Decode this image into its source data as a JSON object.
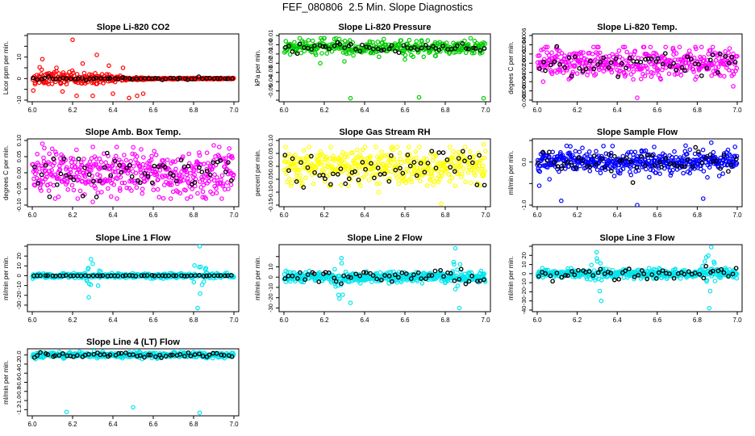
{
  "figure": {
    "title": "FEF_080806  2.5 Min. Slope Diagnostics",
    "overlay_color": "#000000"
  },
  "chart_data": [
    {
      "type": "scatter",
      "title": "Slope Li-820 CO2",
      "ylabel": "Licor ppm per min.",
      "xlim": [
        6.0,
        7.0
      ],
      "ylim": [
        -10,
        20
      ],
      "yticks": [
        -10,
        -5,
        0,
        5,
        10,
        15,
        20
      ],
      "ytick_labels": [
        "-10",
        "",
        "0",
        "",
        "10",
        "",
        ""
      ],
      "xticks": [
        6.0,
        6.2,
        6.4,
        6.6,
        6.8,
        7.0
      ],
      "xtick_labels": [
        "6.0",
        "6.2",
        "6.4",
        "6.6",
        "6.8",
        "7.0"
      ],
      "color": "#ff0000",
      "y_center": 0,
      "y_spread": 1.5,
      "y_band": 4,
      "n_points": 360,
      "spread_decay": true,
      "x_outliers": [
        6.05,
        6.12,
        6.15,
        6.2,
        6.22,
        6.25,
        6.3,
        6.32,
        6.38,
        6.4,
        6.45,
        6.48,
        6.52,
        6.55
      ],
      "y_outliers": [
        9,
        5,
        -6,
        18,
        -8,
        7,
        -8,
        11,
        6,
        -7,
        5,
        -9,
        -8,
        -7
      ],
      "overlay_spread": 0.3
    },
    {
      "type": "scatter",
      "title": "Slope Li-820 Pressure",
      "ylabel": "kPa per min.",
      "xlim": [
        6.0,
        7.0
      ],
      "ylim": [
        -0.06,
        0.01
      ],
      "yticks": [
        -0.06,
        -0.05,
        -0.04,
        -0.03,
        -0.02,
        -0.01,
        0.0,
        0.01
      ],
      "ytick_labels": [
        "",
        "-0.05",
        "-0.04",
        "-0.03",
        "-0.02",
        "-0.01",
        "0.00",
        "0.01"
      ],
      "xticks": [
        6.0,
        6.2,
        6.4,
        6.6,
        6.8,
        7.0
      ],
      "xtick_labels": [
        "6.0",
        "6.2",
        "6.4",
        "6.6",
        "6.8",
        "7.0"
      ],
      "color": "#00cc00",
      "y_center": -0.003,
      "y_spread": 0.004,
      "y_band": 0.01,
      "n_points": 340,
      "spread_decay": false,
      "x_outliers": [
        6.33,
        6.67,
        6.99,
        6.18,
        6.3,
        6.6,
        6.75
      ],
      "y_outliers": [
        -0.058,
        -0.057,
        -0.058,
        -0.02,
        -0.018,
        -0.016,
        -0.012
      ],
      "overlay_spread": 0.0025
    },
    {
      "type": "scatter",
      "title": "Slope Li-820 Temp.",
      "ylabel": "degees C per min.",
      "xlim": [
        6.0,
        7.0
      ],
      "ylim": [
        -0.008,
        0.006
      ],
      "yticks": [
        -0.008,
        -0.006,
        -0.004,
        -0.002,
        0.0,
        0.002,
        0.004,
        0.006
      ],
      "ytick_labels": [
        "-0.008",
        "-0.006",
        "-0.004",
        "-0.002",
        "0.000",
        "0.002",
        "0.004",
        "0.006"
      ],
      "xticks": [
        6.0,
        6.2,
        6.4,
        6.6,
        6.8,
        7.0
      ],
      "xtick_labels": [
        "6.0",
        "6.2",
        "6.4",
        "6.6",
        "6.8",
        "7.0"
      ],
      "color": "#ff00ff",
      "y_center": 0,
      "y_spread": 0.0018,
      "y_band": 0.0035,
      "n_points": 420,
      "spread_decay": false,
      "x_outliers": [
        6.5,
        6.98,
        6.03
      ],
      "y_outliers": [
        -0.0075,
        -0.005,
        -0.004
      ],
      "overlay_spread": 0.0015
    },
    {
      "type": "scatter",
      "title": "Slope Amb. Box Temp.",
      "ylabel": "degrees C per min.",
      "xlim": [
        6.0,
        7.0
      ],
      "ylim": [
        -0.1,
        0.1
      ],
      "yticks": [
        -0.1,
        -0.05,
        0.0,
        0.05,
        0.1
      ],
      "ytick_labels": [
        "-0.10",
        "-0.05",
        "0.00",
        "0.05",
        "0.10"
      ],
      "xticks": [
        6.0,
        6.2,
        6.4,
        6.6,
        6.8,
        7.0
      ],
      "xtick_labels": [
        "6.0",
        "6.2",
        "6.4",
        "6.6",
        "6.8",
        "7.0"
      ],
      "color": "#ff00ff",
      "y_center": 0,
      "y_spread": 0.035,
      "y_band": 0.08,
      "n_points": 460,
      "spread_decay": false,
      "x_outliers": [
        6.05,
        6.3,
        6.42,
        6.9
      ],
      "y_outliers": [
        0.09,
        -0.09,
        -0.08,
        0.085
      ],
      "overlay_spread": 0.03
    },
    {
      "type": "scatter",
      "title": "Slope Gas Stream RH",
      "ylabel": "percent per min.",
      "xlim": [
        6.0,
        7.0
      ],
      "ylim": [
        -0.15,
        0.1
      ],
      "yticks": [
        -0.15,
        -0.1,
        -0.05,
        0.0,
        0.05,
        0.1
      ],
      "ytick_labels": [
        "-0.15",
        "-0.10",
        "-0.05",
        "0.00",
        "0.05",
        "0.10"
      ],
      "xticks": [
        6.0,
        6.2,
        6.4,
        6.6,
        6.8,
        7.0
      ],
      "xtick_labels": [
        "6.0",
        "6.2",
        "6.4",
        "6.6",
        "6.8",
        "7.0"
      ],
      "color": "#ffff00",
      "y_center": 0,
      "y_spread": 0.035,
      "y_band": 0.075,
      "n_points": 440,
      "spread_decay": false,
      "x_outliers": [
        6.78,
        6.99,
        6.47
      ],
      "y_outliers": [
        -0.145,
        0.085,
        -0.1
      ],
      "overlay_spread": 0.04
    },
    {
      "type": "scatter",
      "title": "Slope Sample Flow",
      "ylabel": "ml/min per min.",
      "xlim": [
        6.0,
        7.0
      ],
      "ylim": [
        -1.0,
        0.5
      ],
      "yticks": [
        -1.0,
        -0.5,
        0.0,
        0.5
      ],
      "ytick_labels": [
        "-1.0",
        "",
        "0.0",
        ""
      ],
      "xticks": [
        6.0,
        6.2,
        6.4,
        6.6,
        6.8,
        7.0
      ],
      "xtick_labels": [
        "6.0",
        "6.2",
        "6.4",
        "6.6",
        "6.8",
        "7.0"
      ],
      "color": "#0000ff",
      "y_center": 0,
      "y_spread": 0.13,
      "y_band": 0.4,
      "n_points": 460,
      "spread_decay": false,
      "x_outliers": [
        6.12,
        6.5,
        6.83,
        6.87,
        6.01
      ],
      "y_outliers": [
        -0.9,
        -1.0,
        -0.85,
        0.45,
        -0.55
      ],
      "overlay_spread": 0.15
    },
    {
      "type": "scatter",
      "title": "Slope Line 1 Flow",
      "ylabel": "ml/min per min.",
      "xlim": [
        6.0,
        7.0
      ],
      "ylim": [
        -35,
        30
      ],
      "yticks": [
        -30,
        -20,
        -10,
        0,
        10,
        20,
        30
      ],
      "ytick_labels": [
        "-30",
        "-20",
        "-10",
        "0",
        "10",
        "20",
        ""
      ],
      "xticks": [
        6.0,
        6.2,
        6.4,
        6.6,
        6.8,
        7.0
      ],
      "xtick_labels": [
        "6.0",
        "6.2",
        "6.4",
        "6.6",
        "6.8",
        "7.0"
      ],
      "color": "#00e5ee",
      "y_center": 0,
      "y_spread": 1.2,
      "y_band": 3,
      "n_points": 420,
      "spread_decay": false,
      "burst_centers": [
        6.3,
        6.83
      ],
      "burst_amp": 22,
      "x_outliers": [
        6.82,
        6.83,
        6.28
      ],
      "y_outliers": [
        -33,
        30,
        -22
      ],
      "overlay_spread": 0.2
    },
    {
      "type": "scatter",
      "title": "Slope Line 2 Flow",
      "ylabel": "ml/min per min.",
      "xlim": [
        6.0,
        7.0
      ],
      "ylim": [
        -32,
        30
      ],
      "yticks": [
        -30,
        -20,
        -10,
        0,
        10,
        20
      ],
      "ytick_labels": [
        "-30",
        "-20",
        "-10",
        "0",
        "10",
        ""
      ],
      "xticks": [
        6.0,
        6.2,
        6.4,
        6.6,
        6.8,
        7.0
      ],
      "xtick_labels": [
        "6.0",
        "6.2",
        "6.4",
        "6.6",
        "6.8",
        "7.0"
      ],
      "color": "#00e5ee",
      "y_center": 0,
      "y_spread": 2.5,
      "y_band": 6,
      "n_points": 440,
      "spread_decay": false,
      "burst_centers": [
        6.28,
        6.86
      ],
      "burst_amp": 24,
      "x_outliers": [
        6.87,
        6.85,
        6.33
      ],
      "y_outliers": [
        -30,
        28,
        -25
      ],
      "overlay_spread": 3
    },
    {
      "type": "scatter",
      "title": "Slope Line 3 Flow",
      "ylabel": "ml/min per min.",
      "xlim": [
        6.0,
        7.0
      ],
      "ylim": [
        -40,
        30
      ],
      "yticks": [
        -40,
        -30,
        -20,
        -10,
        0,
        10,
        20,
        30
      ],
      "ytick_labels": [
        "-40",
        "-30",
        "-20",
        "-10",
        "0",
        "10",
        "20",
        ""
      ],
      "xticks": [
        6.0,
        6.2,
        6.4,
        6.6,
        6.8,
        7.0
      ],
      "xtick_labels": [
        "6.0",
        "6.2",
        "6.4",
        "6.6",
        "6.8",
        "7.0"
      ],
      "color": "#00e5ee",
      "y_center": 0,
      "y_spread": 2.5,
      "y_band": 6,
      "n_points": 440,
      "spread_decay": false,
      "burst_centers": [
        6.3,
        6.86
      ],
      "burst_amp": 26,
      "x_outliers": [
        6.86,
        6.87,
        6.32
      ],
      "y_outliers": [
        -38,
        29,
        -30
      ],
      "overlay_spread": 3
    },
    {
      "type": "scatter",
      "title": "Slope Line 4 (LT) Flow",
      "ylabel": "ml/min per min.",
      "xlim": [
        6.0,
        7.0
      ],
      "ylim": [
        -1.3,
        0.1
      ],
      "yticks": [
        -1.2,
        -1.0,
        -0.8,
        -0.6,
        -0.4,
        -0.2,
        0.0
      ],
      "ytick_labels": [
        "-1.2",
        "-1.0",
        "-0.8",
        "-0.6",
        "-0.4",
        "-0.2",
        "0.0"
      ],
      "xticks": [
        6.0,
        6.2,
        6.4,
        6.6,
        6.8,
        7.0
      ],
      "xtick_labels": [
        "6.0",
        "6.2",
        "6.4",
        "6.6",
        "6.8",
        "7.0"
      ],
      "color": "#00e5ee",
      "y_center": 0,
      "y_spread": 0.03,
      "y_band": 0.09,
      "n_points": 420,
      "spread_decay": false,
      "x_outliers": [
        6.17,
        6.5,
        6.83
      ],
      "y_outliers": [
        -1.25,
        -1.15,
        -1.27
      ],
      "overlay_spread": 0.025
    }
  ]
}
